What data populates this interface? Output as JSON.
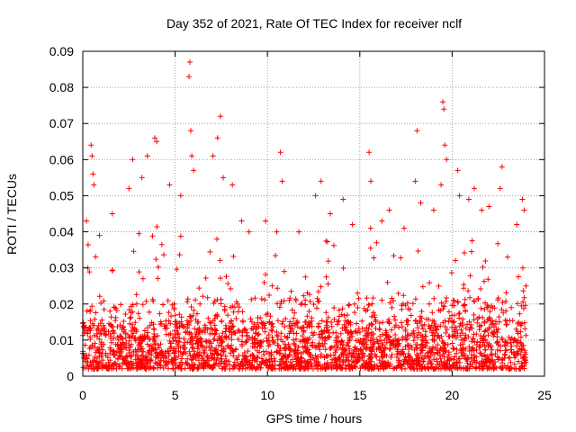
{
  "chart_data": {
    "type": "scatter",
    "title": "Day 352 of 2021, Rate Of TEC Index for receiver nclf",
    "xlabel": "GPS time / hours",
    "ylabel": "ROTI / TECUs",
    "xlim": [
      0,
      25
    ],
    "ylim": [
      0,
      0.09
    ],
    "xticks": [
      0,
      5,
      10,
      15,
      20,
      25
    ],
    "xtick_labels": [
      "0",
      "5",
      "10",
      "15",
      "20",
      "25"
    ],
    "yticks": [
      0,
      0.01,
      0.02,
      0.03,
      0.04,
      0.05,
      0.06,
      0.07,
      0.08,
      0.09
    ],
    "ytick_labels": [
      "0",
      "0.01",
      "0.02",
      "0.03",
      "0.04",
      "0.05",
      "0.06",
      "0.07",
      "0.08",
      "0.09"
    ],
    "grid": true,
    "marker": "+",
    "series": [
      {
        "name": "ROTI",
        "color": "#ff0000",
        "x_range": [
          0,
          24
        ],
        "typical_band": [
          0.002,
          0.02
        ],
        "outliers": [
          {
            "x": 0.2,
            "y": 0.043
          },
          {
            "x": 0.45,
            "y": 0.064
          },
          {
            "x": 0.5,
            "y": 0.061
          },
          {
            "x": 0.55,
            "y": 0.056
          },
          {
            "x": 0.6,
            "y": 0.053
          },
          {
            "x": 0.9,
            "y": 0.039
          },
          {
            "x": 1.6,
            "y": 0.045
          },
          {
            "x": 2.5,
            "y": 0.052
          },
          {
            "x": 2.7,
            "y": 0.06
          },
          {
            "x": 3.2,
            "y": 0.055
          },
          {
            "x": 3.5,
            "y": 0.061
          },
          {
            "x": 3.9,
            "y": 0.066
          },
          {
            "x": 4.0,
            "y": 0.065
          },
          {
            "x": 4.7,
            "y": 0.053
          },
          {
            "x": 5.3,
            "y": 0.05
          },
          {
            "x": 5.75,
            "y": 0.083
          },
          {
            "x": 5.8,
            "y": 0.087
          },
          {
            "x": 5.85,
            "y": 0.068
          },
          {
            "x": 5.9,
            "y": 0.061
          },
          {
            "x": 6.0,
            "y": 0.057
          },
          {
            "x": 7.05,
            "y": 0.061
          },
          {
            "x": 7.3,
            "y": 0.066
          },
          {
            "x": 7.45,
            "y": 0.072
          },
          {
            "x": 7.6,
            "y": 0.055
          },
          {
            "x": 8.1,
            "y": 0.053
          },
          {
            "x": 8.6,
            "y": 0.043
          },
          {
            "x": 9.0,
            "y": 0.04
          },
          {
            "x": 9.9,
            "y": 0.043
          },
          {
            "x": 10.5,
            "y": 0.04
          },
          {
            "x": 10.7,
            "y": 0.062
          },
          {
            "x": 10.8,
            "y": 0.054
          },
          {
            "x": 11.7,
            "y": 0.04
          },
          {
            "x": 12.6,
            "y": 0.05
          },
          {
            "x": 12.9,
            "y": 0.054
          },
          {
            "x": 13.4,
            "y": 0.045
          },
          {
            "x": 14.1,
            "y": 0.049
          },
          {
            "x": 14.6,
            "y": 0.042
          },
          {
            "x": 15.5,
            "y": 0.062
          },
          {
            "x": 15.6,
            "y": 0.054
          },
          {
            "x": 16.2,
            "y": 0.043
          },
          {
            "x": 16.6,
            "y": 0.046
          },
          {
            "x": 17.4,
            "y": 0.041
          },
          {
            "x": 18.0,
            "y": 0.054
          },
          {
            "x": 18.1,
            "y": 0.068
          },
          {
            "x": 18.3,
            "y": 0.048
          },
          {
            "x": 19.0,
            "y": 0.046
          },
          {
            "x": 19.4,
            "y": 0.053
          },
          {
            "x": 19.5,
            "y": 0.076
          },
          {
            "x": 19.55,
            "y": 0.074
          },
          {
            "x": 19.6,
            "y": 0.064
          },
          {
            "x": 19.7,
            "y": 0.06
          },
          {
            "x": 20.3,
            "y": 0.057
          },
          {
            "x": 20.4,
            "y": 0.05
          },
          {
            "x": 20.9,
            "y": 0.049
          },
          {
            "x": 21.2,
            "y": 0.052
          },
          {
            "x": 21.6,
            "y": 0.046
          },
          {
            "x": 22.0,
            "y": 0.047
          },
          {
            "x": 22.6,
            "y": 0.052
          },
          {
            "x": 22.7,
            "y": 0.058
          },
          {
            "x": 23.0,
            "y": 0.033
          },
          {
            "x": 23.5,
            "y": 0.042
          },
          {
            "x": 23.8,
            "y": 0.049
          },
          {
            "x": 23.9,
            "y": 0.046
          },
          {
            "x": 24.0,
            "y": 0.025
          }
        ],
        "activity_envelope": [
          {
            "x": 0,
            "y": 0.03
          },
          {
            "x": 0.5,
            "y": 0.045
          },
          {
            "x": 1,
            "y": 0.025
          },
          {
            "x": 1.5,
            "y": 0.032
          },
          {
            "x": 2,
            "y": 0.02
          },
          {
            "x": 2.5,
            "y": 0.032
          },
          {
            "x": 3,
            "y": 0.04
          },
          {
            "x": 3.5,
            "y": 0.045
          },
          {
            "x": 4,
            "y": 0.048
          },
          {
            "x": 4.5,
            "y": 0.04
          },
          {
            "x": 5,
            "y": 0.038
          },
          {
            "x": 5.5,
            "y": 0.045
          },
          {
            "x": 6,
            "y": 0.048
          },
          {
            "x": 6.5,
            "y": 0.04
          },
          {
            "x": 7,
            "y": 0.04
          },
          {
            "x": 7.5,
            "y": 0.045
          },
          {
            "x": 8,
            "y": 0.04
          },
          {
            "x": 8.5,
            "y": 0.03
          },
          {
            "x": 9,
            "y": 0.028
          },
          {
            "x": 9.5,
            "y": 0.025
          },
          {
            "x": 10,
            "y": 0.03
          },
          {
            "x": 10.5,
            "y": 0.038
          },
          {
            "x": 11,
            "y": 0.032
          },
          {
            "x": 11.5,
            "y": 0.022
          },
          {
            "x": 12,
            "y": 0.03
          },
          {
            "x": 12.5,
            "y": 0.036
          },
          {
            "x": 13,
            "y": 0.042
          },
          {
            "x": 13.5,
            "y": 0.042
          },
          {
            "x": 14,
            "y": 0.04
          },
          {
            "x": 14.5,
            "y": 0.03
          },
          {
            "x": 15,
            "y": 0.033
          },
          {
            "x": 15.5,
            "y": 0.045
          },
          {
            "x": 16,
            "y": 0.038
          },
          {
            "x": 16.5,
            "y": 0.038
          },
          {
            "x": 17,
            "y": 0.035
          },
          {
            "x": 17.5,
            "y": 0.03
          },
          {
            "x": 18,
            "y": 0.038
          },
          {
            "x": 18.5,
            "y": 0.032
          },
          {
            "x": 19,
            "y": 0.035
          },
          {
            "x": 19.5,
            "y": 0.045
          },
          {
            "x": 20,
            "y": 0.035
          },
          {
            "x": 20.5,
            "y": 0.035
          },
          {
            "x": 21,
            "y": 0.038
          },
          {
            "x": 21.5,
            "y": 0.035
          },
          {
            "x": 22,
            "y": 0.035
          },
          {
            "x": 22.5,
            "y": 0.04
          },
          {
            "x": 23,
            "y": 0.035
          },
          {
            "x": 23.5,
            "y": 0.03
          },
          {
            "x": 24,
            "y": 0.03
          }
        ]
      }
    ]
  }
}
